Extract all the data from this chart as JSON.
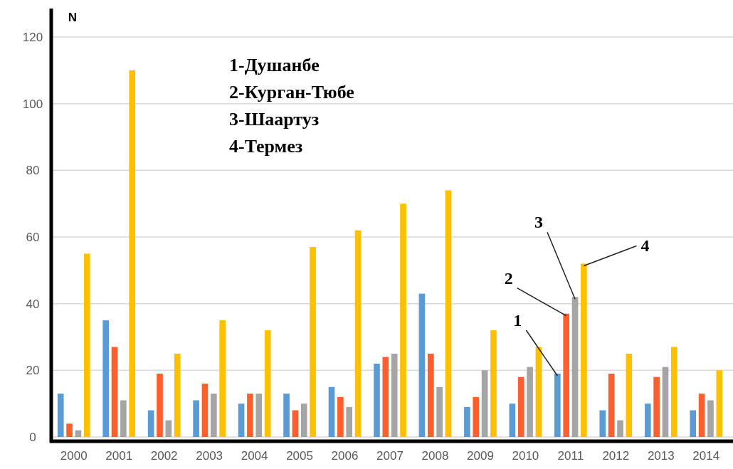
{
  "chart_data": {
    "type": "bar",
    "ylabel": "N",
    "categories": [
      "2000",
      "2001",
      "2002",
      "2003",
      "2004",
      "2005",
      "2006",
      "2007",
      "2008",
      "2009",
      "2010",
      "2011",
      "2012",
      "2013",
      "2014"
    ],
    "series": [
      {
        "name": "1",
        "color": "#5b9bd5",
        "values": [
          13,
          35,
          8,
          11,
          10,
          13,
          15,
          22,
          43,
          9,
          10,
          19,
          8,
          10,
          8
        ]
      },
      {
        "name": "2",
        "color": "#ff5f2e",
        "values": [
          4,
          27,
          19,
          16,
          13,
          8,
          12,
          24,
          25,
          12,
          18,
          37,
          19,
          18,
          13
        ]
      },
      {
        "name": "3",
        "color": "#a5a5a5",
        "values": [
          2,
          11,
          5,
          13,
          13,
          10,
          9,
          25,
          15,
          20,
          21,
          42,
          5,
          21,
          11
        ]
      },
      {
        "name": "4",
        "color": "#ffc000",
        "values": [
          55,
          110,
          25,
          35,
          32,
          57,
          62,
          70,
          74,
          32,
          27,
          52,
          25,
          27,
          20
        ]
      }
    ],
    "ylim": [
      0,
      120
    ],
    "yticks": [
      0,
      20,
      40,
      60,
      80,
      100,
      120
    ],
    "grid": "y",
    "annotations": [
      "1-Душанбе",
      "2-Курган-Тюбе",
      "3-Шаартуз",
      "4-Термез"
    ]
  }
}
